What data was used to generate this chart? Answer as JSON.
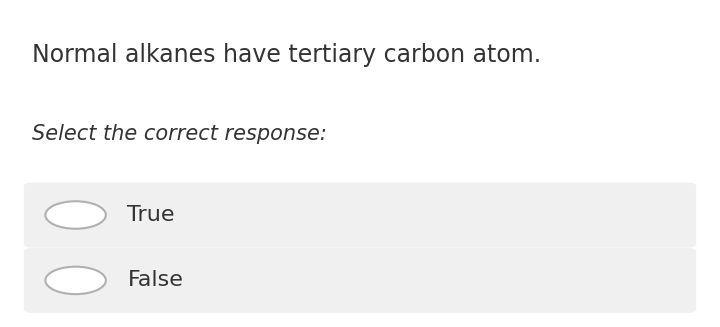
{
  "background_color": "#ffffff",
  "question_normal_text": "Normal",
  "question_rest_text": " alkanes have tertiary carbon atom.",
  "subtitle_text": "Select the correct response:",
  "options": [
    "True",
    "False"
  ],
  "option_box_color": "#f0f0f0",
  "option_border_color": "#d0d0d0",
  "radio_fill_color": "#ffffff",
  "radio_border_color": "#b0b0b0",
  "text_color": "#333333",
  "question_fontsize": 17,
  "subtitle_fontsize": 15,
  "option_fontsize": 16
}
